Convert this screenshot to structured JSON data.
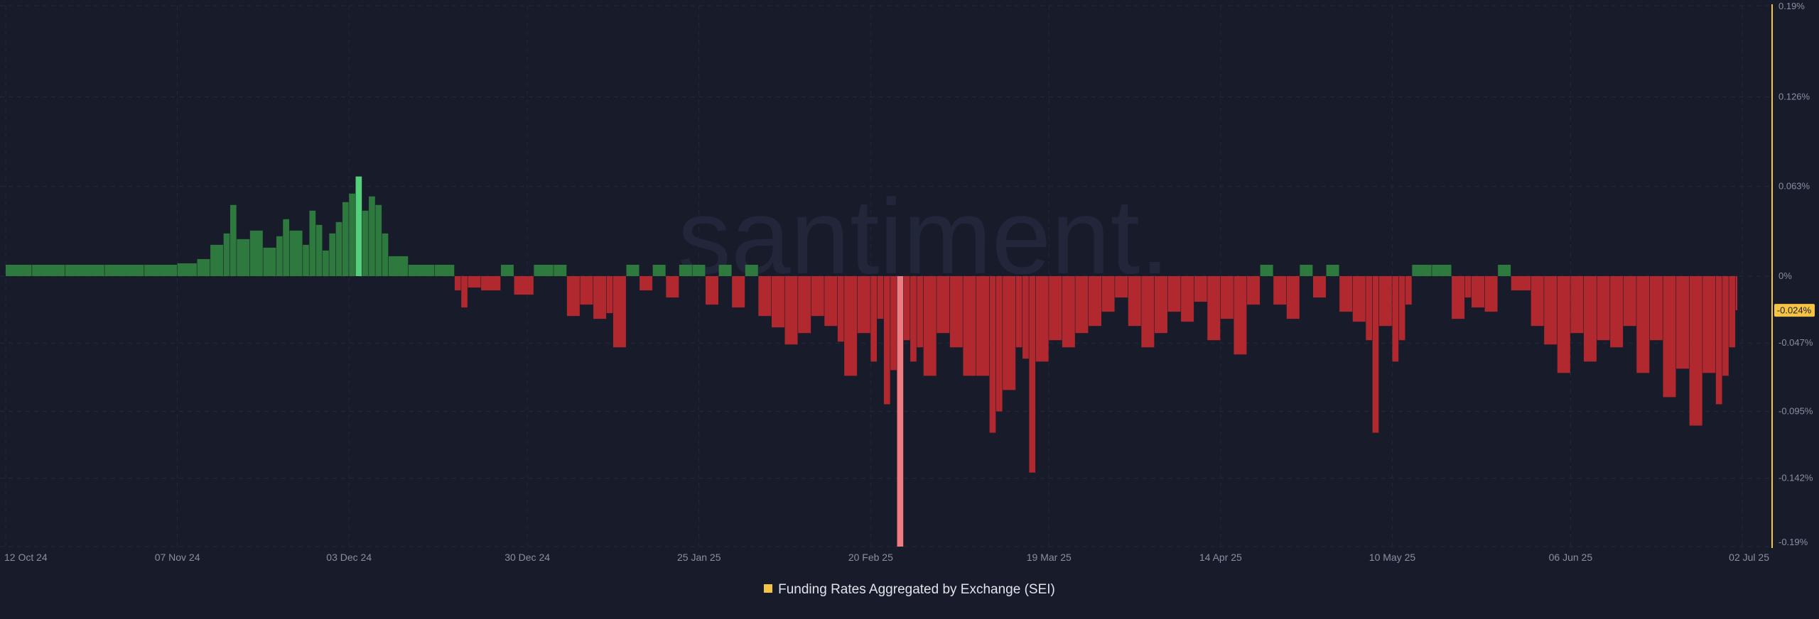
{
  "watermark": "santiment.",
  "chart_data": {
    "type": "bar",
    "title": "",
    "xlabel": "",
    "ylabel": "",
    "unit": "%",
    "x_start": "2024-10-12",
    "x_end": "2025-07-02",
    "ylim": [
      -0.19,
      0.19
    ],
    "y_ticks": [
      "0.19%",
      "0.126%",
      "0.063%",
      "0%",
      "-0.047%",
      "-0.095%",
      "-0.142%",
      "-0.19%"
    ],
    "y_tick_values": [
      0.19,
      0.126,
      0.063,
      0,
      -0.047,
      -0.095,
      -0.142,
      -0.19
    ],
    "x_ticks": [
      "12 Oct 24",
      "07 Nov 24",
      "03 Dec 24",
      "30 Dec 24",
      "25 Jan 25",
      "20 Feb 25",
      "19 Mar 25",
      "14 Apr 25",
      "10 May 25",
      "06 Jun 25",
      "02 Jul 25"
    ],
    "x_tick_dates": [
      "2024-10-12",
      "2024-11-07",
      "2024-12-03",
      "2024-12-30",
      "2025-01-25",
      "2025-02-20",
      "2025-03-19",
      "2025-04-14",
      "2025-05-10",
      "2025-06-06",
      "2025-07-02"
    ],
    "current_value_label": "-0.024%",
    "current_value": -0.024,
    "colors": {
      "positive": "#2e7a3e",
      "negative": "#b1292f",
      "highlight_positive": "#53d17a",
      "highlight_negative": "#f07c82",
      "accent": "#f5c443"
    },
    "series": [
      {
        "name": "Funding Rates Aggregated by Exchange (SEI)",
        "points": [
          [
            "2024-10-12",
            0.008
          ],
          [
            "2024-10-16",
            0.008
          ],
          [
            "2024-10-21",
            0.008
          ],
          [
            "2024-10-27",
            0.008
          ],
          [
            "2024-11-02",
            0.008
          ],
          [
            "2024-11-07",
            0.009
          ],
          [
            "2024-11-10",
            0.012
          ],
          [
            "2024-11-12",
            0.022
          ],
          [
            "2024-11-14",
            0.03
          ],
          [
            "2024-11-15",
            0.05
          ],
          [
            "2024-11-16",
            0.026
          ],
          [
            "2024-11-18",
            0.032
          ],
          [
            "2024-11-20",
            0.02
          ],
          [
            "2024-11-22",
            0.028
          ],
          [
            "2024-11-23",
            0.04
          ],
          [
            "2024-11-24",
            0.032
          ],
          [
            "2024-11-26",
            0.022
          ],
          [
            "2024-11-27",
            0.046
          ],
          [
            "2024-11-28",
            0.036
          ],
          [
            "2024-11-29",
            0.018
          ],
          [
            "2024-11-30",
            0.03
          ],
          [
            "2024-12-01",
            0.038
          ],
          [
            "2024-12-02",
            0.052
          ],
          [
            "2024-12-03",
            0.058
          ],
          [
            "2024-12-04",
            0.07
          ],
          [
            "2024-12-05",
            0.046
          ],
          [
            "2024-12-06",
            0.056
          ],
          [
            "2024-12-07",
            0.05
          ],
          [
            "2024-12-08",
            0.03
          ],
          [
            "2024-12-09",
            0.014
          ],
          [
            "2024-12-12",
            0.008
          ],
          [
            "2024-12-16",
            0.008
          ],
          [
            "2024-12-19",
            -0.01
          ],
          [
            "2024-12-20",
            -0.022
          ],
          [
            "2024-12-21",
            -0.008
          ],
          [
            "2024-12-23",
            -0.01
          ],
          [
            "2024-12-26",
            0.008
          ],
          [
            "2024-12-28",
            -0.013
          ],
          [
            "2024-12-31",
            0.008
          ],
          [
            "2025-01-03",
            0.008
          ],
          [
            "2025-01-05",
            -0.028
          ],
          [
            "2025-01-07",
            -0.02
          ],
          [
            "2025-01-09",
            -0.03
          ],
          [
            "2025-01-11",
            -0.026
          ],
          [
            "2025-01-12",
            -0.05
          ],
          [
            "2025-01-14",
            0.008
          ],
          [
            "2025-01-16",
            -0.01
          ],
          [
            "2025-01-18",
            0.008
          ],
          [
            "2025-01-20",
            -0.015
          ],
          [
            "2025-01-22",
            0.008
          ],
          [
            "2025-01-24",
            0.008
          ],
          [
            "2025-01-26",
            -0.02
          ],
          [
            "2025-01-28",
            0.008
          ],
          [
            "2025-01-30",
            -0.022
          ],
          [
            "2025-02-01",
            0.008
          ],
          [
            "2025-02-03",
            -0.028
          ],
          [
            "2025-02-05",
            -0.036
          ],
          [
            "2025-02-07",
            -0.048
          ],
          [
            "2025-02-09",
            -0.04
          ],
          [
            "2025-02-11",
            -0.028
          ],
          [
            "2025-02-13",
            -0.035
          ],
          [
            "2025-02-15",
            -0.046
          ],
          [
            "2025-02-16",
            -0.07
          ],
          [
            "2025-02-18",
            -0.04
          ],
          [
            "2025-02-20",
            -0.06
          ],
          [
            "2025-02-21",
            -0.03
          ],
          [
            "2025-02-22",
            -0.09
          ],
          [
            "2025-02-23",
            -0.066
          ],
          [
            "2025-02-24",
            -0.19
          ],
          [
            "2025-02-25",
            -0.045
          ],
          [
            "2025-02-26",
            -0.06
          ],
          [
            "2025-02-27",
            -0.05
          ],
          [
            "2025-02-28",
            -0.07
          ],
          [
            "2025-03-02",
            -0.04
          ],
          [
            "2025-03-04",
            -0.05
          ],
          [
            "2025-03-06",
            -0.07
          ],
          [
            "2025-03-08",
            -0.07
          ],
          [
            "2025-03-10",
            -0.11
          ],
          [
            "2025-03-11",
            -0.095
          ],
          [
            "2025-03-12",
            -0.08
          ],
          [
            "2025-03-14",
            -0.05
          ],
          [
            "2025-03-15",
            -0.058
          ],
          [
            "2025-03-16",
            -0.138
          ],
          [
            "2025-03-17",
            -0.06
          ],
          [
            "2025-03-19",
            -0.045
          ],
          [
            "2025-03-21",
            -0.05
          ],
          [
            "2025-03-23",
            -0.04
          ],
          [
            "2025-03-25",
            -0.035
          ],
          [
            "2025-03-27",
            -0.025
          ],
          [
            "2025-03-29",
            -0.015
          ],
          [
            "2025-03-31",
            -0.035
          ],
          [
            "2025-04-02",
            -0.05
          ],
          [
            "2025-04-04",
            -0.04
          ],
          [
            "2025-04-06",
            -0.025
          ],
          [
            "2025-04-08",
            -0.032
          ],
          [
            "2025-04-10",
            -0.018
          ],
          [
            "2025-04-12",
            -0.045
          ],
          [
            "2025-04-14",
            -0.03
          ],
          [
            "2025-04-16",
            -0.055
          ],
          [
            "2025-04-18",
            -0.02
          ],
          [
            "2025-04-20",
            0.008
          ],
          [
            "2025-04-22",
            -0.02
          ],
          [
            "2025-04-24",
            -0.03
          ],
          [
            "2025-04-26",
            0.008
          ],
          [
            "2025-04-28",
            -0.015
          ],
          [
            "2025-04-30",
            0.008
          ],
          [
            "2025-05-02",
            -0.025
          ],
          [
            "2025-05-04",
            -0.032
          ],
          [
            "2025-05-06",
            -0.045
          ],
          [
            "2025-05-07",
            -0.11
          ],
          [
            "2025-05-08",
            -0.035
          ],
          [
            "2025-05-10",
            -0.06
          ],
          [
            "2025-05-11",
            -0.045
          ],
          [
            "2025-05-12",
            -0.02
          ],
          [
            "2025-05-13",
            0.008
          ],
          [
            "2025-05-16",
            0.008
          ],
          [
            "2025-05-19",
            -0.03
          ],
          [
            "2025-05-21",
            -0.015
          ],
          [
            "2025-05-22",
            -0.022
          ],
          [
            "2025-05-24",
            -0.025
          ],
          [
            "2025-05-26",
            0.008
          ],
          [
            "2025-05-28",
            -0.01
          ],
          [
            "2025-05-31",
            -0.035
          ],
          [
            "2025-06-02",
            -0.048
          ],
          [
            "2025-06-04",
            -0.068
          ],
          [
            "2025-06-06",
            -0.04
          ],
          [
            "2025-06-08",
            -0.06
          ],
          [
            "2025-06-10",
            -0.045
          ],
          [
            "2025-06-12",
            -0.05
          ],
          [
            "2025-06-14",
            -0.035
          ],
          [
            "2025-06-16",
            -0.068
          ],
          [
            "2025-06-18",
            -0.045
          ],
          [
            "2025-06-20",
            -0.085
          ],
          [
            "2025-06-22",
            -0.065
          ],
          [
            "2025-06-24",
            -0.105
          ],
          [
            "2025-06-26",
            -0.068
          ],
          [
            "2025-06-28",
            -0.09
          ],
          [
            "2025-06-29",
            -0.07
          ],
          [
            "2025-06-30",
            -0.05
          ],
          [
            "2025-07-01",
            -0.024
          ]
        ]
      }
    ],
    "legend_position": "bottom",
    "grid": true
  }
}
